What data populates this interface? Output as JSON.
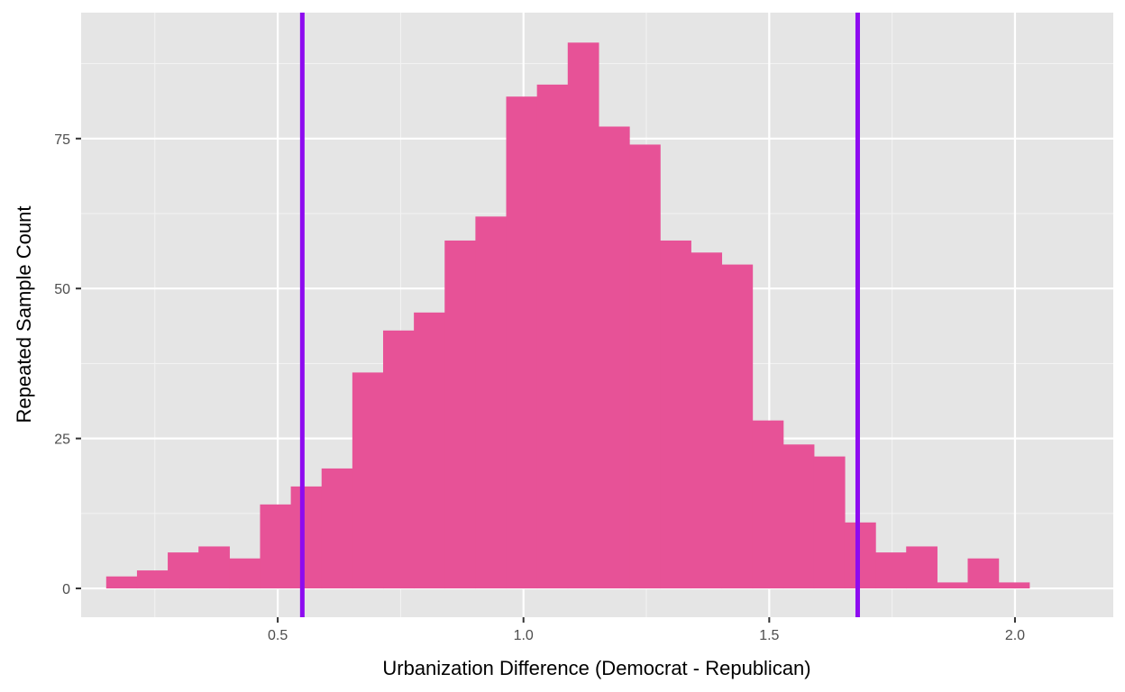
{
  "chart_data": {
    "type": "bar",
    "title": "",
    "xlabel": "Urbanization Difference (Democrat - Republican)",
    "ylabel": "Repeated Sample Count",
    "xlim": [
      0.1,
      2.2
    ],
    "ylim": [
      -4.8,
      96
    ],
    "x_ticks": [
      0.5,
      1.0,
      1.5,
      2.0
    ],
    "x_tick_labels": [
      "0.5",
      "1.0",
      "1.5",
      "2.0"
    ],
    "y_ticks": [
      0,
      25,
      50,
      75
    ],
    "y_tick_labels": [
      "0",
      "25",
      "50",
      "75"
    ],
    "grid": true,
    "bin_width": 0.0626,
    "bin_start": 0.151,
    "values": [
      2,
      3,
      6,
      7,
      5,
      14,
      17,
      20,
      36,
      43,
      46,
      58,
      62,
      82,
      84,
      91,
      77,
      74,
      58,
      56,
      54,
      28,
      24,
      22,
      11,
      6,
      7,
      1,
      5,
      1
    ],
    "vlines": [
      0.55,
      1.68
    ],
    "colors": {
      "bar": "#E75297",
      "vline": "#8E0BF0",
      "panel": "#E5E5E5",
      "grid_major": "#FFFFFF",
      "grid_minor": "#F2F2F2"
    }
  }
}
